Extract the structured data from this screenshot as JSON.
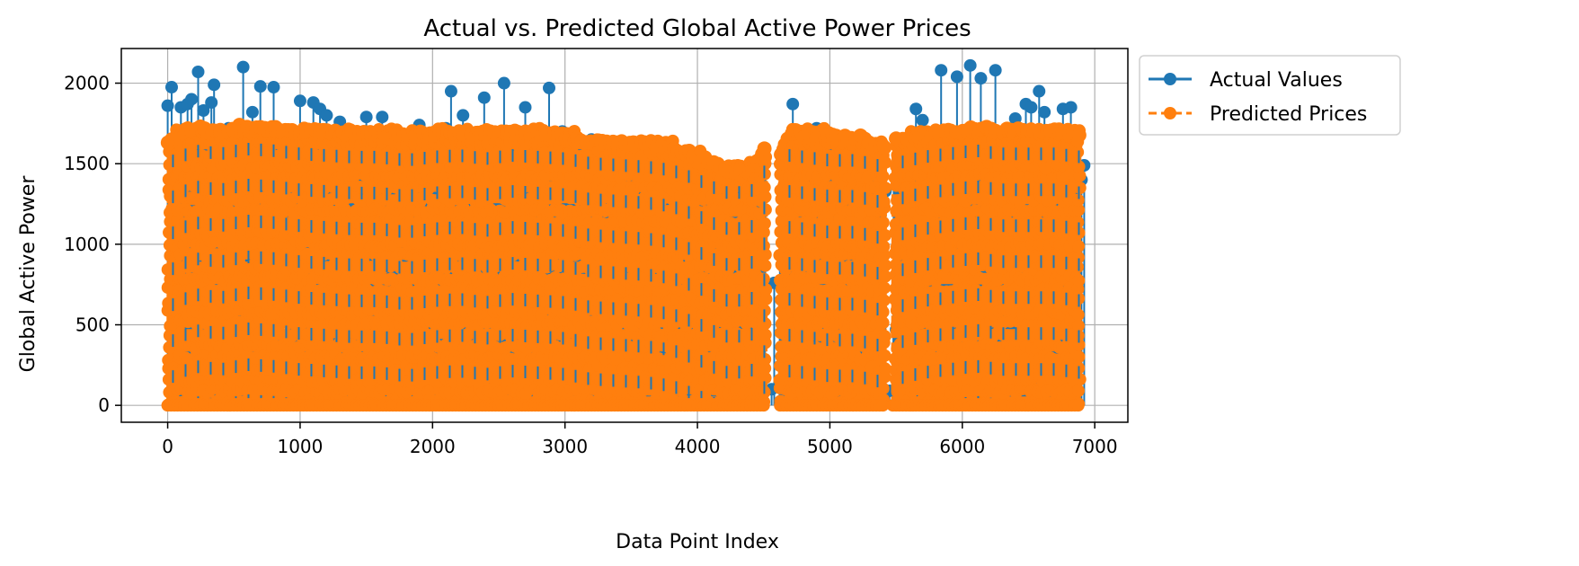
{
  "chart_data": {
    "type": "line",
    "title": "Actual vs. Predicted Global Active Power Prices",
    "xlabel": "Data Point Index",
    "ylabel": "Global Active Power",
    "xlim": [
      -350,
      7250
    ],
    "ylim": [
      -105,
      2215
    ],
    "xticks": [
      0,
      1000,
      2000,
      3000,
      4000,
      5000,
      6000,
      7000
    ],
    "xtick_labels": [
      "0",
      "1000",
      "2000",
      "3000",
      "4000",
      "5000",
      "6000",
      "7000"
    ],
    "yticks": [
      0,
      500,
      1000,
      1500,
      2000
    ],
    "ytick_labels": [
      "0",
      "500",
      "1000",
      "1500",
      "2000"
    ],
    "grid": true,
    "legend_position": "outside-right",
    "series": [
      {
        "name": "Actual Values",
        "color": "#1f77b4",
        "linestyle": "solid",
        "x": [
          0,
          30,
          100,
          150,
          180,
          230,
          270,
          330,
          350,
          460,
          570,
          640,
          700,
          800,
          1000,
          1100,
          1150,
          1200,
          1300,
          1500,
          1620,
          1900,
          2100,
          2140,
          2230,
          2390,
          2540,
          2700,
          2880,
          2980,
          3200,
          3600,
          3900,
          4100,
          4300,
          4500,
          4560,
          4580,
          4720,
          4900,
          5200,
          5420,
          5450,
          5500,
          5650,
          5700,
          5840,
          5960,
          6060,
          6140,
          6250,
          6400,
          6480,
          6520,
          6580,
          6620,
          6760,
          6820,
          6900,
          6920
        ],
        "y": [
          1860,
          1975,
          1850,
          1870,
          1900,
          2070,
          1830,
          1880,
          1990,
          1720,
          2100,
          1820,
          1980,
          1975,
          1890,
          1880,
          1840,
          1800,
          1760,
          1790,
          1790,
          1740,
          1720,
          1950,
          1800,
          1910,
          2000,
          1850,
          1970,
          1700,
          1650,
          1600,
          1560,
          1490,
          1470,
          1580,
          100,
          760,
          1870,
          1720,
          1660,
          1330,
          90,
          470,
          1840,
          1770,
          2080,
          2040,
          2110,
          2030,
          2080,
          1780,
          1870,
          1850,
          1950,
          1820,
          1840,
          1850,
          1400,
          1490
        ],
        "baseline_min": 0
      },
      {
        "name": "Predicted Prices",
        "color": "#ff7f0e",
        "linestyle": "dashed",
        "envelope_x": [
          0,
          200,
          400,
          600,
          800,
          1000,
          1200,
          1400,
          1600,
          1800,
          2000,
          2200,
          2400,
          2600,
          2800,
          3000,
          3200,
          3400,
          3600,
          3800,
          4000,
          4200,
          4400,
          4500,
          4620,
          4700,
          4800,
          5000,
          5200,
          5400,
          5500,
          5700,
          5900,
          6100,
          6300,
          6500,
          6700,
          6900
        ],
        "envelope_y": [
          1660,
          1740,
          1720,
          1750,
          1740,
          1720,
          1710,
          1700,
          1700,
          1680,
          1700,
          1710,
          1690,
          1710,
          1700,
          1690,
          1660,
          1650,
          1640,
          1620,
          1560,
          1480,
          1480,
          1610,
          1560,
          1720,
          1700,
          1680,
          1680,
          1640,
          1660,
          1700,
          1720,
          1740,
          1720,
          1720,
          1720,
          1700
        ],
        "gaps": [
          [
            880,
            890
          ],
          [
            4520,
            4610
          ],
          [
            5420,
            5470
          ],
          [
            6890,
            6920
          ]
        ]
      }
    ]
  }
}
